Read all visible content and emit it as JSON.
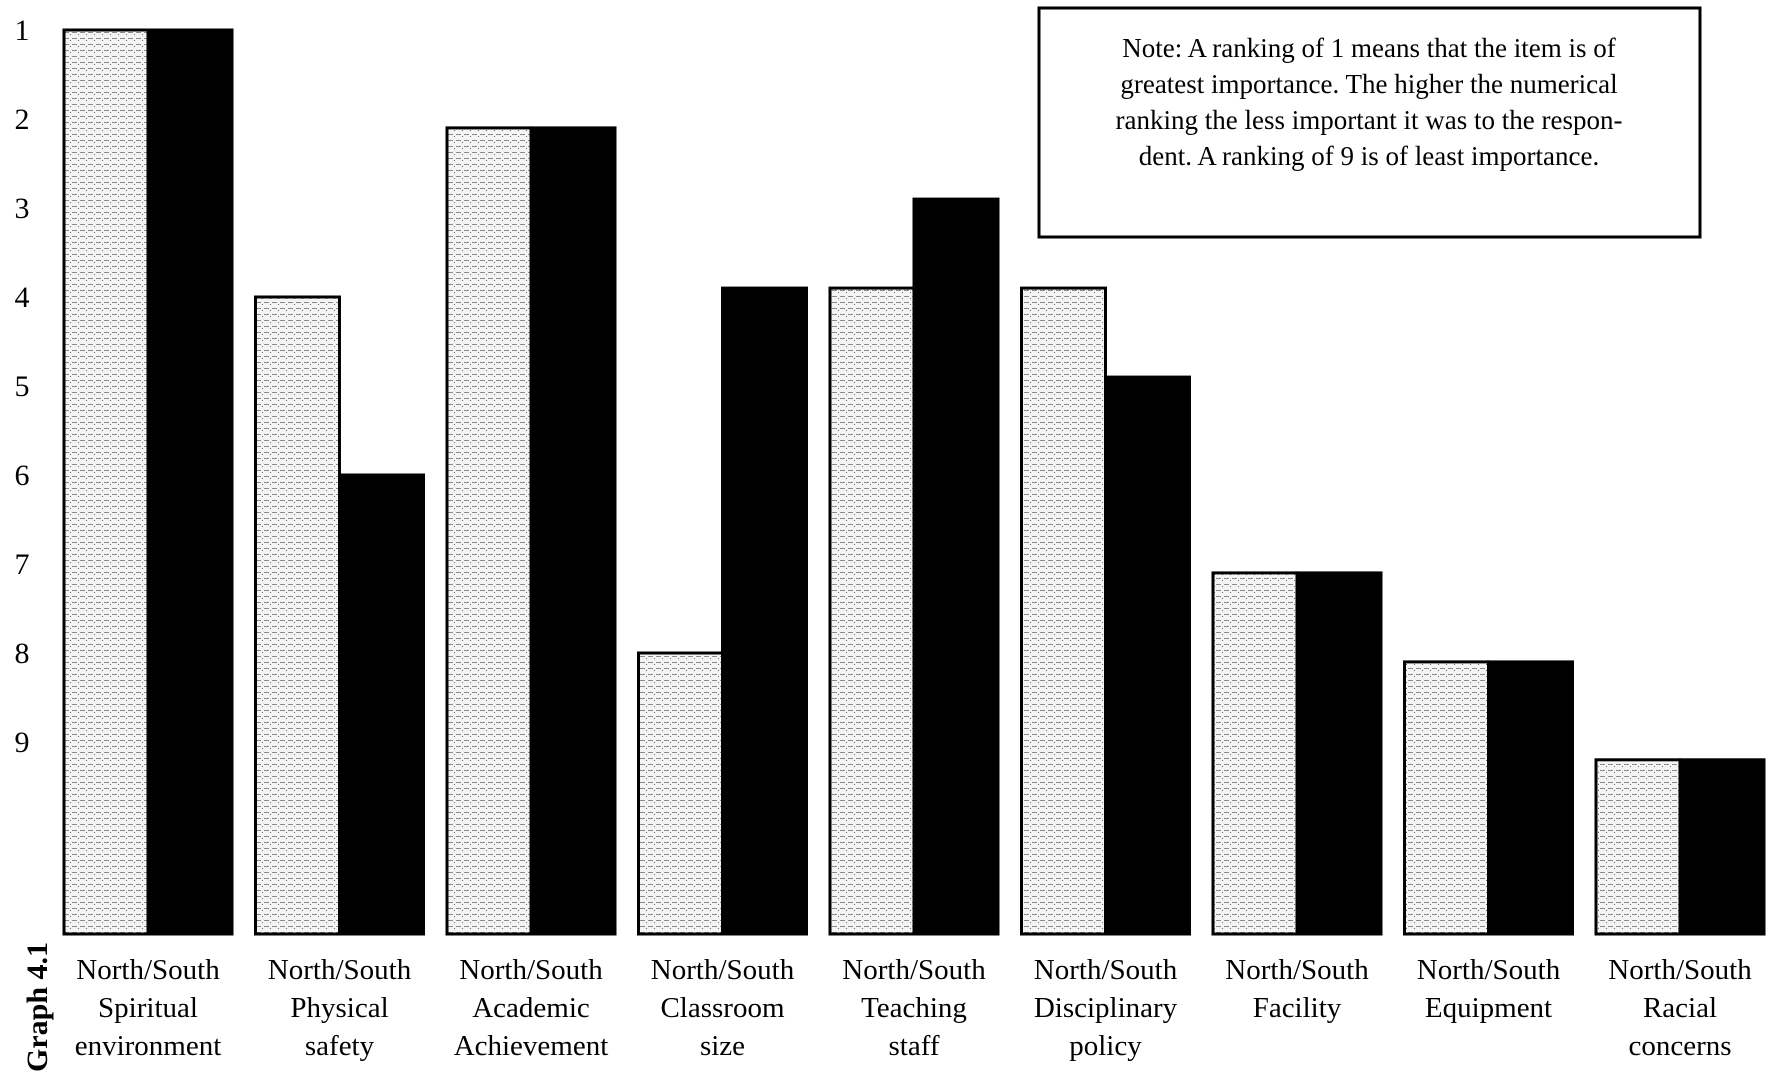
{
  "chart_data": {
    "type": "bar",
    "graph_label": "Graph 4.1",
    "categories": [
      [
        "North/South",
        "Spiritual",
        "environment"
      ],
      [
        "North/South",
        "Physical",
        "safety"
      ],
      [
        "North/South",
        "Academic",
        "Achievement"
      ],
      [
        "North/South",
        "Classroom",
        "size"
      ],
      [
        "North/South",
        "Teaching",
        "staff"
      ],
      [
        "North/South",
        "Disciplinary",
        "policy"
      ],
      [
        "North/South",
        "Facility"
      ],
      [
        "North/South",
        "Equipment"
      ],
      [
        "North/South",
        "Racial",
        "concerns"
      ]
    ],
    "series": [
      {
        "values": [
          1.0,
          4.0,
          2.1,
          8.0,
          3.9,
          3.9,
          7.1,
          8.1,
          9.2
        ],
        "color": "#e8e8e8",
        "pattern": "dotted-light"
      },
      {
        "values": [
          1.0,
          6.0,
          2.1,
          3.9,
          2.9,
          4.9,
          7.1,
          8.1,
          9.2
        ],
        "color": "#000000"
      }
    ],
    "y_ticks": [
      "1",
      "2",
      "3",
      "4",
      "5",
      "6",
      "7",
      "8",
      "9"
    ],
    "ylim": [
      1,
      10.5
    ],
    "y_inverted": true,
    "note": [
      "Note: A ranking of 1 means that the item is of",
      "greatest importance.  The higher the numerical",
      "ranking the less important it was to the respon-",
      "dent.  A ranking of 9 is of least importance."
    ]
  }
}
